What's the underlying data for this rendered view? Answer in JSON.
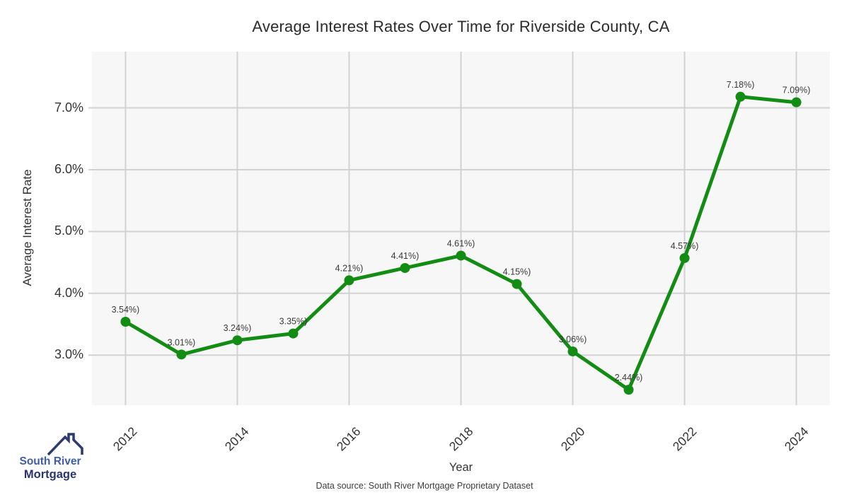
{
  "page": {
    "title": "Average Interest Rates Over Time for Riverside County, CA"
  },
  "chart_data": {
    "type": "line",
    "title": "Average Interest Rates Over Time for Riverside County, CA",
    "xlabel": "Year",
    "ylabel": "Average Interest Rate",
    "x": [
      2012,
      2013,
      2014,
      2015,
      2016,
      2017,
      2018,
      2019,
      2020,
      2021,
      2022,
      2023,
      2024
    ],
    "series": [
      {
        "name": "Average Interest Rate",
        "values": [
          3.54,
          3.01,
          3.24,
          3.35,
          4.21,
          4.41,
          4.61,
          4.15,
          3.06,
          2.44,
          4.57,
          7.18,
          7.09
        ]
      }
    ],
    "point_labels": [
      "3.54%)",
      "3.01%)",
      "3.24%)",
      "3.35%)",
      "4.21%)",
      "4.41%)",
      "4.61%)",
      "4.15%)",
      "3.06%)",
      "2.44%)",
      "4.57%)",
      "7.18%)",
      "7.09%)"
    ],
    "xticks": [
      2012,
      2014,
      2016,
      2018,
      2020,
      2022,
      2024
    ],
    "xtick_labels": [
      "2012",
      "2014",
      "2016",
      "2018",
      "2020",
      "2022",
      "2024"
    ],
    "yticks": [
      3,
      4,
      5,
      6,
      7
    ],
    "ytick_labels": [
      "3.0%",
      "4.0%",
      "5.0%",
      "6.0%",
      "7.0%"
    ],
    "xlim": [
      2011.4,
      2024.6
    ],
    "ylim": [
      2.19,
      7.91
    ],
    "grid": true,
    "legend": "none",
    "colors": {
      "line": "#138c13",
      "marker": "#138c13",
      "plot_bg": "#f7f7f7",
      "grid": "#d2d2d2",
      "point_label_text": "#3a3a3a"
    }
  },
  "footer": {
    "source_text": "Data source: South River Mortgage Proprietary Dataset"
  },
  "logo": {
    "line1": "South River",
    "line2": "Mortgage",
    "colors": {
      "line1": "#3f5cad",
      "line2": "#2a3570",
      "roof": "#2c3a6e"
    }
  }
}
